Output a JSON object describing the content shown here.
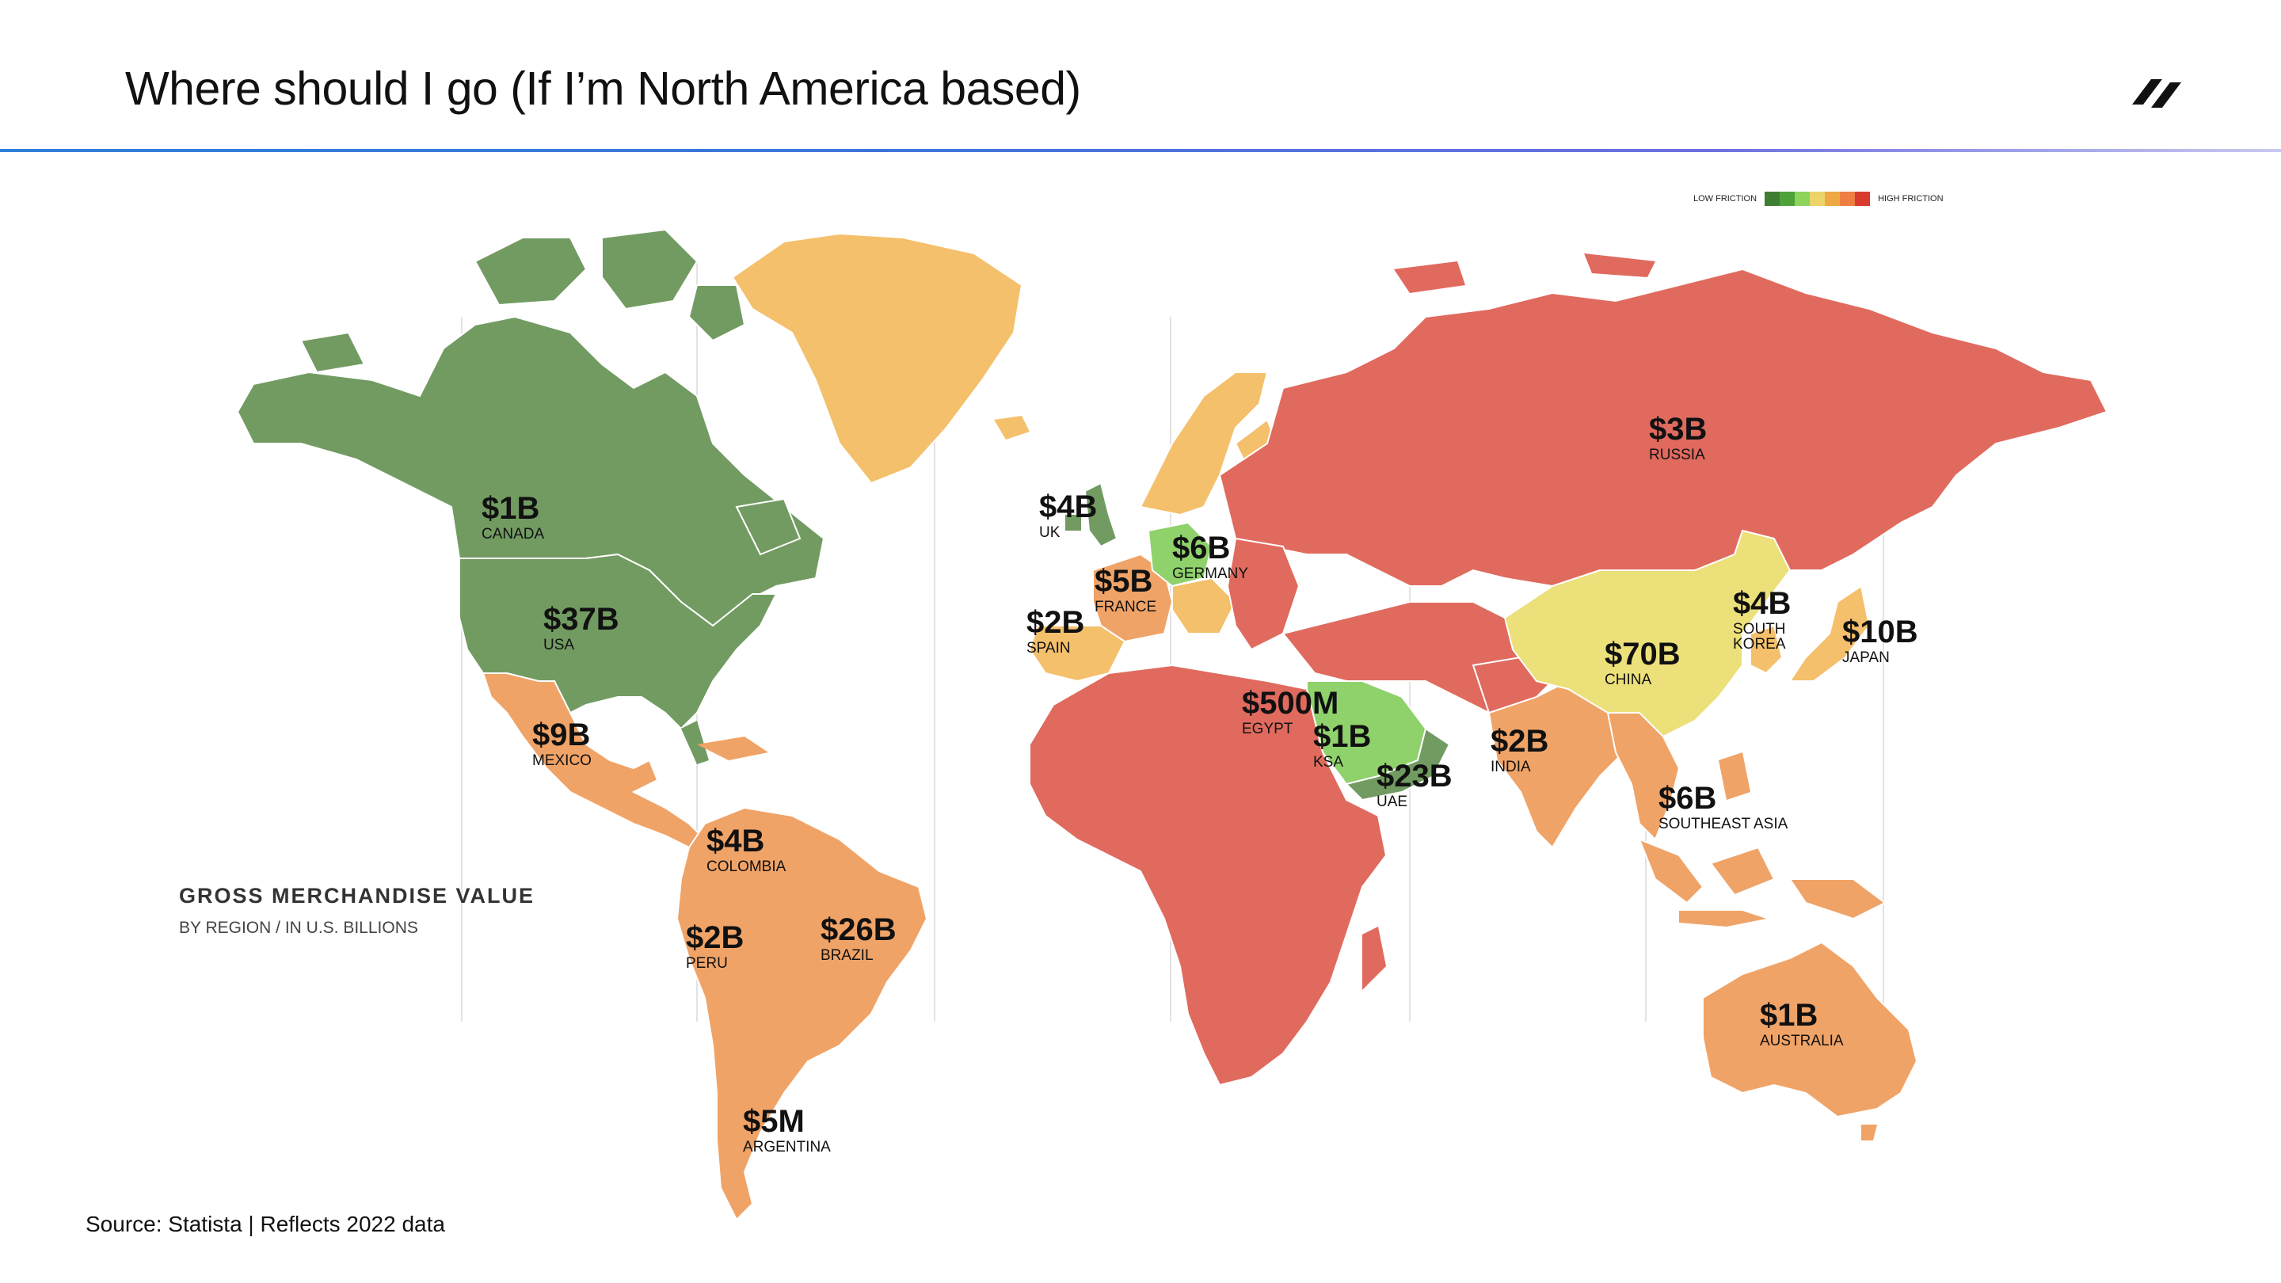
{
  "slide": {
    "title": "Where should I go (If I’m North America based)",
    "source": "Source: Statista  |  Reflects 2022 data"
  },
  "legend": {
    "low_label": "LOW FRICTION",
    "high_label": "HIGH FRICTION",
    "scale_colors": [
      "#3f7d32",
      "#4fa23a",
      "#8ed35c",
      "#ecd36a",
      "#eea944",
      "#ee7e41",
      "#d83a2e"
    ]
  },
  "info": {
    "title": "GROSS MERCHANDISE VALUE",
    "subtitle": "BY REGION /  IN U.S. BILLIONS"
  },
  "colors": {
    "green": "#729b62",
    "light_green": "#8fd16b",
    "yellow": "#ece07a",
    "light_orange": "#f4c06c",
    "orange": "#f0a367",
    "red": "#e06a5e",
    "bright_red": "#e05a4e"
  },
  "regions": [
    {
      "key": "canada",
      "value": "$1B",
      "name": "CANADA",
      "color": "green"
    },
    {
      "key": "usa",
      "value": "$37B",
      "name": "USA",
      "color": "green"
    },
    {
      "key": "mexico",
      "value": "$9B",
      "name": "MEXICO",
      "color": "orange"
    },
    {
      "key": "colombia",
      "value": "$4B",
      "name": "COLOMBIA",
      "color": "orange"
    },
    {
      "key": "peru",
      "value": "$2B",
      "name": "PERU",
      "color": "orange"
    },
    {
      "key": "brazil",
      "value": "$26B",
      "name": "BRAZIL",
      "color": "orange"
    },
    {
      "key": "argentina",
      "value": "$5M",
      "name": "ARGENTINA",
      "color": "orange"
    },
    {
      "key": "uk",
      "value": "$4B",
      "name": "UK",
      "color": "green"
    },
    {
      "key": "germany",
      "value": "$6B",
      "name": "GERMANY",
      "color": "light_green"
    },
    {
      "key": "france",
      "value": "$5B",
      "name": "FRANCE",
      "color": "orange"
    },
    {
      "key": "spain",
      "value": "$2B",
      "name": "SPAIN",
      "color": "light_orange"
    },
    {
      "key": "russia",
      "value": "$3B",
      "name": "RUSSIA",
      "color": "red"
    },
    {
      "key": "south_korea",
      "value": "$4B",
      "name": "SOUTH KOREA",
      "color": "light_orange"
    },
    {
      "key": "japan",
      "value": "$10B",
      "name": "JAPAN",
      "color": "light_orange"
    },
    {
      "key": "china",
      "value": "$70B",
      "name": "CHINA",
      "color": "yellow"
    },
    {
      "key": "egypt",
      "value": "$500M",
      "name": "EGYPT",
      "color": "red"
    },
    {
      "key": "ksa",
      "value": "$1B",
      "name": "KSA",
      "color": "light_green"
    },
    {
      "key": "uae",
      "value": "$23B",
      "name": "UAE",
      "color": "green"
    },
    {
      "key": "india",
      "value": "$2B",
      "name": "INDIA",
      "color": "orange"
    },
    {
      "key": "southeast_asia",
      "value": "$6B",
      "name": "SOUTHEAST ASIA",
      "color": "orange"
    },
    {
      "key": "australia",
      "value": "$1B",
      "name": "AUSTRALIA",
      "color": "orange"
    }
  ]
}
